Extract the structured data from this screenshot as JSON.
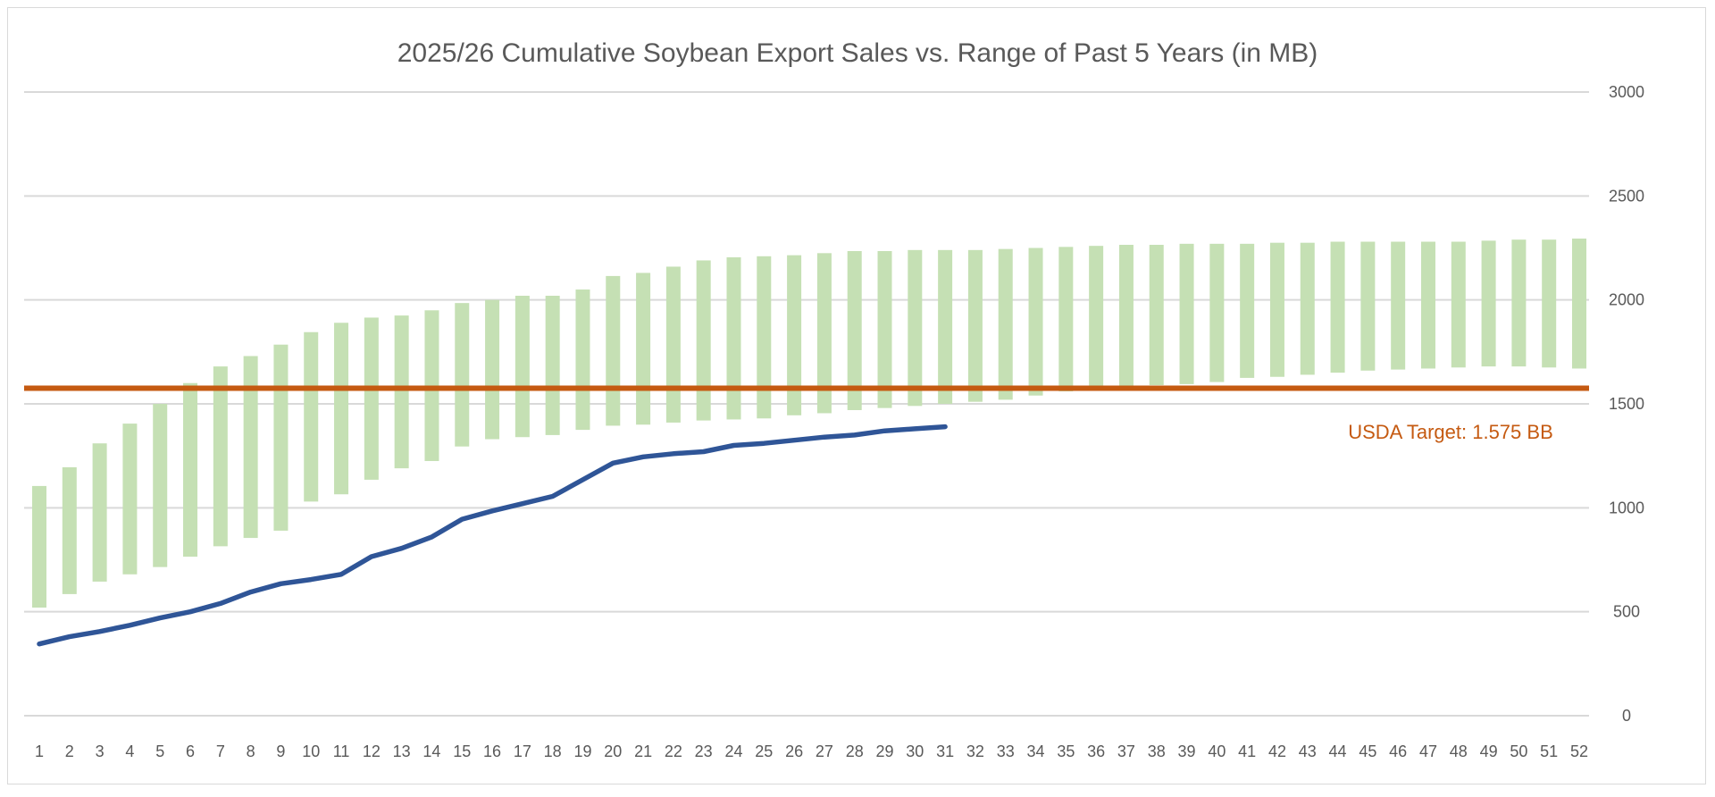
{
  "chart_data": {
    "type": "bar",
    "title": "2025/26 Cumulative Soybean Export Sales vs. Range of Past 5 Years (in MB)",
    "xlabel": "",
    "ylabel": "",
    "ylim": [
      0,
      3000
    ],
    "y_ticks": [
      0,
      500,
      1000,
      1500,
      2000,
      2500,
      3000
    ],
    "y_axis_side": "right",
    "grid": true,
    "categories": [
      "1",
      "2",
      "3",
      "4",
      "5",
      "6",
      "7",
      "8",
      "9",
      "10",
      "11",
      "12",
      "13",
      "14",
      "15",
      "16",
      "17",
      "18",
      "19",
      "20",
      "21",
      "22",
      "23",
      "24",
      "25",
      "26",
      "27",
      "28",
      "29",
      "30",
      "31",
      "32",
      "33",
      "34",
      "35",
      "36",
      "37",
      "38",
      "39",
      "40",
      "41",
      "42",
      "43",
      "44",
      "45",
      "46",
      "47",
      "48",
      "49",
      "50",
      "51",
      "52"
    ],
    "range_bars": {
      "low": [
        520,
        585,
        645,
        680,
        715,
        765,
        815,
        855,
        890,
        1030,
        1065,
        1135,
        1190,
        1225,
        1295,
        1330,
        1340,
        1350,
        1375,
        1395,
        1400,
        1410,
        1420,
        1425,
        1430,
        1445,
        1455,
        1470,
        1480,
        1490,
        1500,
        1510,
        1520,
        1540,
        1560,
        1570,
        1580,
        1590,
        1595,
        1605,
        1625,
        1630,
        1640,
        1650,
        1660,
        1665,
        1670,
        1675,
        1680,
        1680,
        1675,
        1670
      ],
      "high": [
        1105,
        1195,
        1310,
        1405,
        1500,
        1600,
        1680,
        1730,
        1785,
        1845,
        1890,
        1915,
        1925,
        1950,
        1985,
        2000,
        2020,
        2020,
        2050,
        2115,
        2130,
        2160,
        2190,
        2205,
        2210,
        2215,
        2225,
        2235,
        2235,
        2240,
        2240,
        2240,
        2245,
        2250,
        2255,
        2260,
        2265,
        2265,
        2270,
        2270,
        2270,
        2275,
        2275,
        2280,
        2280,
        2280,
        2280,
        2280,
        2285,
        2290,
        2290,
        2295
      ],
      "color": "#c5e0b4"
    },
    "current_year": {
      "values": [
        345,
        380,
        405,
        435,
        470,
        500,
        540,
        595,
        635,
        655,
        680,
        765,
        805,
        860,
        945,
        985,
        1020,
        1055,
        1135,
        1215,
        1245,
        1260,
        1270,
        1300,
        1310,
        1325,
        1340,
        1350,
        1370,
        1380,
        1390
      ],
      "color": "#2f5597"
    },
    "target": {
      "value": 1575,
      "label": "USDA Target: 1.575 BB",
      "color": "#c55a11"
    },
    "gridline_color": "#d9d9d9"
  }
}
